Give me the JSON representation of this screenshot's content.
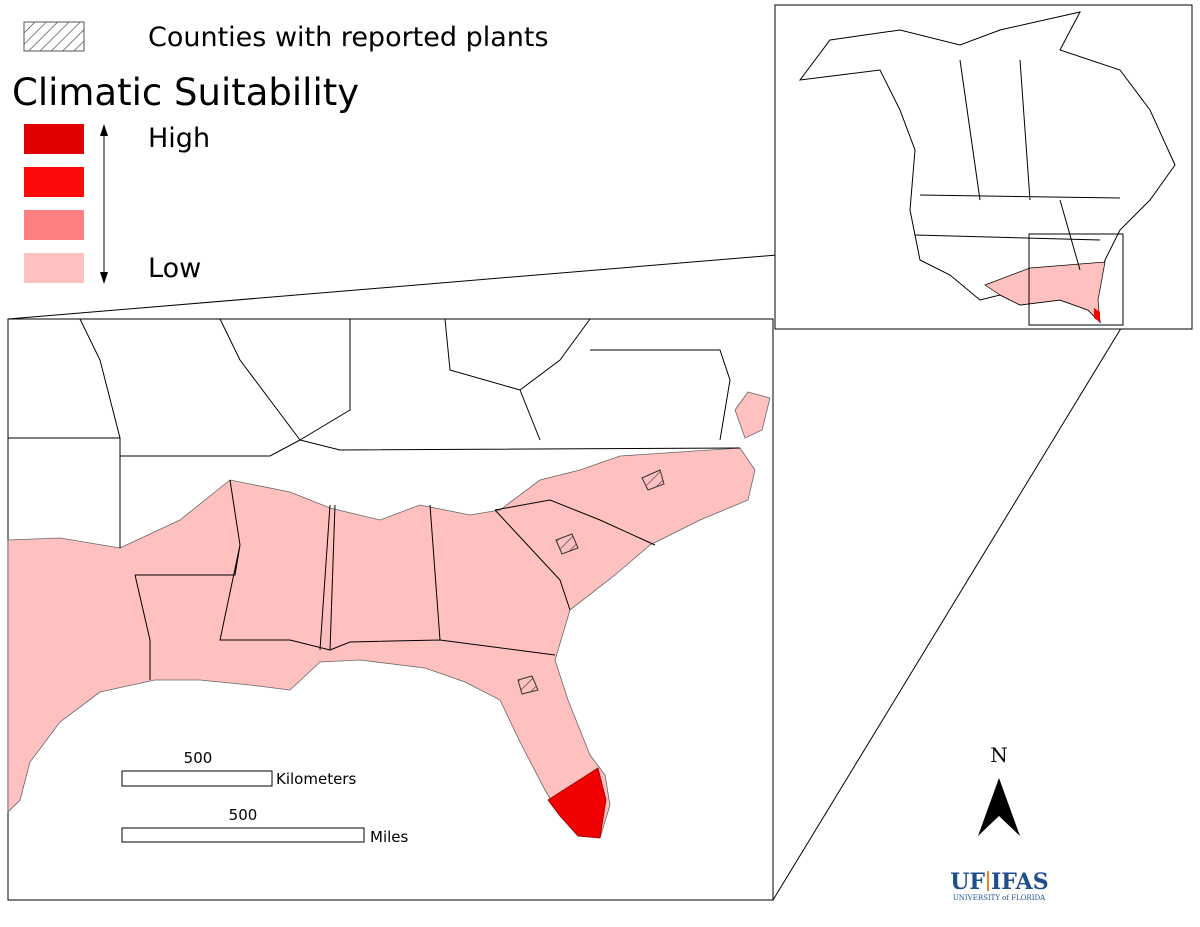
{
  "legend": {
    "hatch_label": "Counties with reported plants",
    "title": "Climatic Suitability",
    "high": "High",
    "low": "Low"
  },
  "scale": {
    "km_value": "500",
    "km_unit": "Kilometers",
    "mi_value": "500",
    "mi_unit": "Miles"
  },
  "north": "N",
  "logo": {
    "uf": "UF",
    "ifas": "IFAS",
    "university": "UNIVERSITY of FLORIDA"
  }
}
